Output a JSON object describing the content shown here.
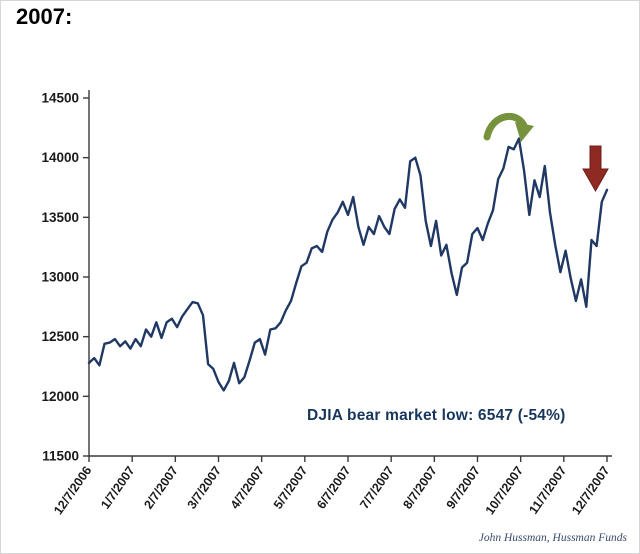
{
  "title": "2007:",
  "attribution": "John Hussman, Hussman Funds",
  "chart_data": {
    "type": "line",
    "title": "2007:",
    "grid": false,
    "legend": false,
    "xlabel": "",
    "ylabel": "",
    "ylim": [
      11500,
      14500
    ],
    "yticks": [
      11500,
      12000,
      12500,
      13000,
      13500,
      14000,
      14500
    ],
    "x_tick_labels": [
      "12/7/2006",
      "1/7/2007",
      "2/7/2007",
      "3/7/2007",
      "4/7/2007",
      "5/7/2007",
      "6/7/2007",
      "7/7/2007",
      "8/7/2007",
      "9/7/2007",
      "10/7/2007",
      "11/7/2007",
      "12/7/2007"
    ],
    "annotation": "DJIA bear market low: 6547  (-54%)",
    "line_color": "#1F3864",
    "arc_arrow_color": "#76923C",
    "down_arrow_color": "#8E2A21",
    "axis_color": "#3a3a3a",
    "series": [
      {
        "name": "DJIA",
        "values": [
          12280,
          12320,
          12260,
          12440,
          12450,
          12480,
          12420,
          12460,
          12400,
          12480,
          12420,
          12560,
          12500,
          12620,
          12490,
          12620,
          12650,
          12580,
          12670,
          12730,
          12790,
          12780,
          12680,
          12270,
          12230,
          12120,
          12050,
          12130,
          12280,
          12110,
          12160,
          12300,
          12450,
          12480,
          12350,
          12560,
          12570,
          12620,
          12720,
          12800,
          12950,
          13090,
          13120,
          13240,
          13260,
          13210,
          13380,
          13480,
          13540,
          13630,
          13520,
          13670,
          13420,
          13270,
          13420,
          13360,
          13510,
          13420,
          13360,
          13570,
          13650,
          13580,
          13970,
          14000,
          13850,
          13470,
          13260,
          13470,
          13180,
          13270,
          13030,
          12850,
          13080,
          13120,
          13360,
          13410,
          13310,
          13450,
          13560,
          13820,
          13910,
          14090,
          14070,
          14160,
          13890,
          13520,
          13810,
          13670,
          13930,
          13540,
          13270,
          13040,
          13220,
          12990,
          12800,
          12980,
          12750,
          13310,
          13260,
          13630,
          13730
        ]
      }
    ]
  }
}
